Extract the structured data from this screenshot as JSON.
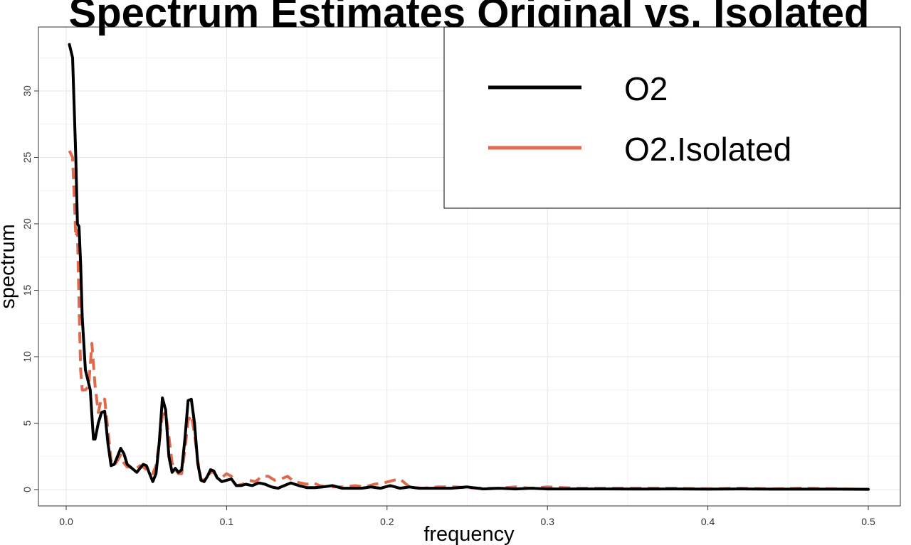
{
  "chart_data": {
    "type": "line",
    "title": "Spectrum Estimates Original vs. Isolated",
    "xlabel": "frequency",
    "ylabel": "spectrum",
    "xlim": [
      0,
      0.5
    ],
    "ylim": [
      0,
      33.5
    ],
    "xticks": [
      "0.0",
      "0.1",
      "0.2",
      "0.3",
      "0.4",
      "0.5"
    ],
    "yticks": [
      "0",
      "5",
      "10",
      "15",
      "20",
      "25",
      "30"
    ],
    "grid": true,
    "legend_position": "top-right",
    "series": [
      {
        "name": "O2",
        "color": "#000000",
        "style": "solid",
        "x": [
          0.002,
          0.004,
          0.006,
          0.007,
          0.008,
          0.009,
          0.01,
          0.012,
          0.015,
          0.017,
          0.018,
          0.02,
          0.022,
          0.024,
          0.026,
          0.028,
          0.03,
          0.032,
          0.034,
          0.036,
          0.038,
          0.04,
          0.042,
          0.044,
          0.046,
          0.048,
          0.05,
          0.052,
          0.054,
          0.056,
          0.058,
          0.06,
          0.062,
          0.064,
          0.066,
          0.068,
          0.07,
          0.072,
          0.074,
          0.076,
          0.078,
          0.08,
          0.082,
          0.084,
          0.086,
          0.088,
          0.09,
          0.092,
          0.094,
          0.097,
          0.1,
          0.103,
          0.106,
          0.109,
          0.112,
          0.116,
          0.12,
          0.124,
          0.128,
          0.132,
          0.136,
          0.14,
          0.145,
          0.15,
          0.155,
          0.16,
          0.166,
          0.172,
          0.178,
          0.184,
          0.19,
          0.196,
          0.202,
          0.208,
          0.214,
          0.22,
          0.23,
          0.24,
          0.25,
          0.26,
          0.27,
          0.28,
          0.29,
          0.3,
          0.32,
          0.34,
          0.36,
          0.38,
          0.4,
          0.42,
          0.44,
          0.46,
          0.48,
          0.5
        ],
        "y": [
          33.5,
          32.5,
          25.0,
          20.0,
          19.8,
          17.0,
          13.0,
          9.0,
          7.5,
          3.8,
          3.8,
          5.0,
          5.8,
          5.9,
          3.5,
          1.8,
          1.9,
          2.5,
          3.1,
          2.7,
          1.9,
          1.7,
          1.5,
          1.3,
          1.6,
          1.9,
          1.8,
          1.2,
          0.6,
          1.2,
          3.5,
          6.9,
          6.0,
          2.5,
          1.3,
          1.6,
          1.3,
          1.5,
          3.8,
          6.7,
          6.8,
          5.0,
          2.0,
          0.7,
          0.6,
          1.0,
          1.5,
          1.4,
          0.9,
          0.6,
          0.7,
          0.8,
          0.3,
          0.3,
          0.4,
          0.3,
          0.5,
          0.4,
          0.2,
          0.1,
          0.3,
          0.5,
          0.3,
          0.15,
          0.15,
          0.2,
          0.3,
          0.1,
          0.1,
          0.1,
          0.2,
          0.1,
          0.3,
          0.1,
          0.2,
          0.1,
          0.1,
          0.1,
          0.2,
          0.05,
          0.1,
          0.05,
          0.1,
          0.05,
          0.05,
          0.05,
          0.04,
          0.05,
          0.03,
          0.05,
          0.03,
          0.03,
          0.03,
          0.02
        ]
      },
      {
        "name": "O2.Isolated",
        "color": "#e06a4f",
        "style": "dashed",
        "x": [
          0.002,
          0.004,
          0.005,
          0.006,
          0.007,
          0.008,
          0.009,
          0.01,
          0.012,
          0.014,
          0.016,
          0.018,
          0.02,
          0.022,
          0.024,
          0.026,
          0.028,
          0.03,
          0.032,
          0.034,
          0.036,
          0.038,
          0.04,
          0.042,
          0.044,
          0.046,
          0.048,
          0.05,
          0.052,
          0.054,
          0.056,
          0.058,
          0.06,
          0.062,
          0.064,
          0.066,
          0.068,
          0.07,
          0.072,
          0.074,
          0.076,
          0.078,
          0.08,
          0.082,
          0.084,
          0.086,
          0.088,
          0.09,
          0.092,
          0.094,
          0.097,
          0.1,
          0.103,
          0.106,
          0.11,
          0.114,
          0.118,
          0.122,
          0.126,
          0.13,
          0.134,
          0.138,
          0.142,
          0.146,
          0.15,
          0.154,
          0.158,
          0.162,
          0.168,
          0.174,
          0.18,
          0.186,
          0.192,
          0.198,
          0.204,
          0.208,
          0.214,
          0.222,
          0.232,
          0.242,
          0.25,
          0.26,
          0.27,
          0.28,
          0.29,
          0.3,
          0.32,
          0.34,
          0.36,
          0.38,
          0.4,
          0.42,
          0.44,
          0.46,
          0.48,
          0.5
        ],
        "y": [
          25.5,
          25.0,
          22.0,
          19.0,
          19.5,
          14.0,
          9.0,
          7.5,
          7.5,
          7.8,
          11.0,
          7.8,
          5.8,
          6.9,
          6.8,
          4.5,
          2.2,
          1.8,
          2.2,
          2.6,
          2.0,
          1.7,
          1.7,
          1.5,
          1.6,
          1.8,
          1.7,
          1.5,
          1.3,
          1.2,
          1.8,
          3.5,
          5.6,
          5.8,
          4.0,
          2.0,
          1.5,
          1.2,
          1.2,
          3.0,
          5.2,
          5.6,
          4.2,
          2.2,
          0.8,
          0.7,
          1.0,
          1.3,
          1.3,
          1.0,
          0.9,
          1.2,
          1.0,
          0.3,
          0.4,
          0.7,
          0.6,
          1.0,
          1.0,
          0.7,
          0.8,
          1.0,
          0.6,
          0.5,
          0.4,
          0.5,
          0.3,
          0.2,
          0.2,
          0.2,
          0.3,
          0.2,
          0.4,
          0.5,
          0.7,
          0.8,
          0.2,
          0.1,
          0.2,
          0.2,
          0.15,
          0.1,
          0.1,
          0.2,
          0.1,
          0.2,
          0.1,
          0.1,
          0.1,
          0.1,
          0.05,
          0.1,
          0.05,
          0.1,
          0.05,
          0.02
        ]
      }
    ]
  }
}
